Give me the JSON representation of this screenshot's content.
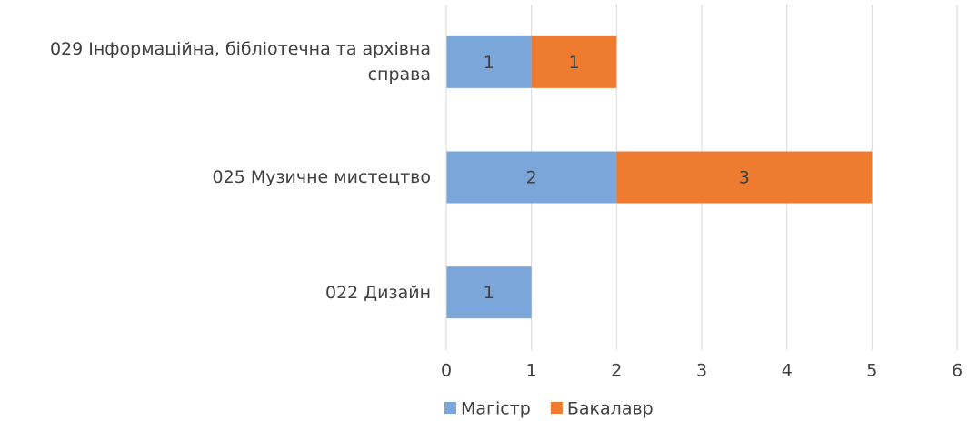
{
  "chart_data": {
    "type": "stacked_barh",
    "categories": [
      "029 Інформаційна, бібліотечна та архівна справа",
      "025 Музичне мистецтво",
      "022 Дизайн"
    ],
    "series": [
      {
        "name": "Магістр",
        "color": "#7aa6d9",
        "values": [
          1,
          2,
          1
        ]
      },
      {
        "name": "Бакалавр",
        "color": "#ee7b30",
        "values": [
          1,
          3,
          null
        ]
      }
    ],
    "xlim": [
      0,
      6
    ],
    "xticks": [
      0,
      1,
      2,
      3,
      4,
      5,
      6
    ],
    "grid": true,
    "legend": "bottom"
  }
}
